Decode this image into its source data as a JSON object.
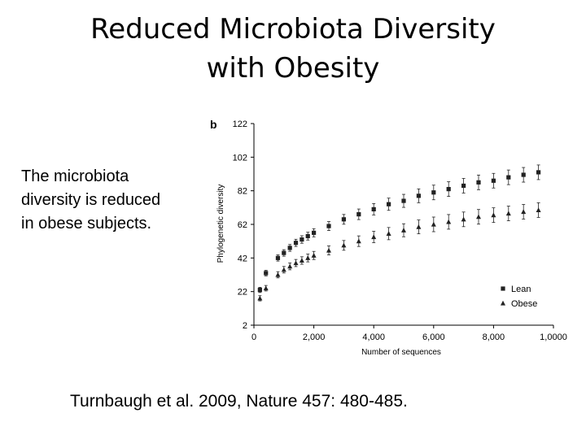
{
  "slide": {
    "title_line1": "Reduced Microbiota Diversity",
    "title_line2": "with Obesity",
    "body_line1": "The microbiota",
    "body_line2": "diversity is reduced",
    "body_line3": "in obese subjects.",
    "citation": "Turnbaugh et al. 2009, Nature 457: 480-485."
  },
  "chart_data": {
    "type": "scatter",
    "panel_label": "b",
    "xlabel": "Number of sequences",
    "ylabel": "Phylogenetic diversity",
    "xlim": [
      0,
      10000
    ],
    "ylim": [
      2,
      122
    ],
    "x_ticks": [
      0,
      2000,
      4000,
      6000,
      8000,
      10000
    ],
    "x_tick_labels": [
      "0",
      "2,000",
      "4,000",
      "6,000",
      "8,000",
      "1,0000"
    ],
    "y_ticks": [
      2,
      22,
      42,
      62,
      82,
      102,
      122
    ],
    "y_tick_labels": [
      "2",
      "22",
      "42",
      "62",
      "82",
      "102",
      "122"
    ],
    "legend_position": "bottom-right",
    "error_bars": true,
    "grid": false,
    "series": [
      {
        "name": "Lean",
        "marker": "square",
        "color": "#222222",
        "x": [
          200,
          400,
          800,
          1000,
          1200,
          1400,
          1600,
          1800,
          2000,
          2500,
          3000,
          3500,
          4000,
          4500,
          5000,
          5500,
          6000,
          6500,
          7000,
          7500,
          8000,
          8500,
          9000,
          9500
        ],
        "y": [
          23,
          33,
          42,
          45,
          48,
          51,
          53,
          55,
          57,
          61,
          65,
          68,
          71,
          74,
          76,
          79,
          81,
          83,
          85,
          87,
          88,
          90,
          91.5,
          93
        ]
      },
      {
        "name": "Obese",
        "marker": "triangle",
        "color": "#222222",
        "x": [
          200,
          400,
          800,
          1000,
          1200,
          1400,
          1600,
          1800,
          2000,
          2500,
          3000,
          3500,
          4000,
          4500,
          5000,
          5500,
          6000,
          6500,
          7000,
          7500,
          8000,
          8500,
          9000,
          9500
        ],
        "y": [
          18,
          24,
          32,
          35,
          37,
          39,
          40.5,
          42,
          43.5,
          46.5,
          49.5,
          52,
          54.5,
          56.5,
          58.5,
          60.5,
          62,
          63.5,
          65,
          66.5,
          67.5,
          68.5,
          69.5,
          70.5
        ]
      }
    ]
  }
}
